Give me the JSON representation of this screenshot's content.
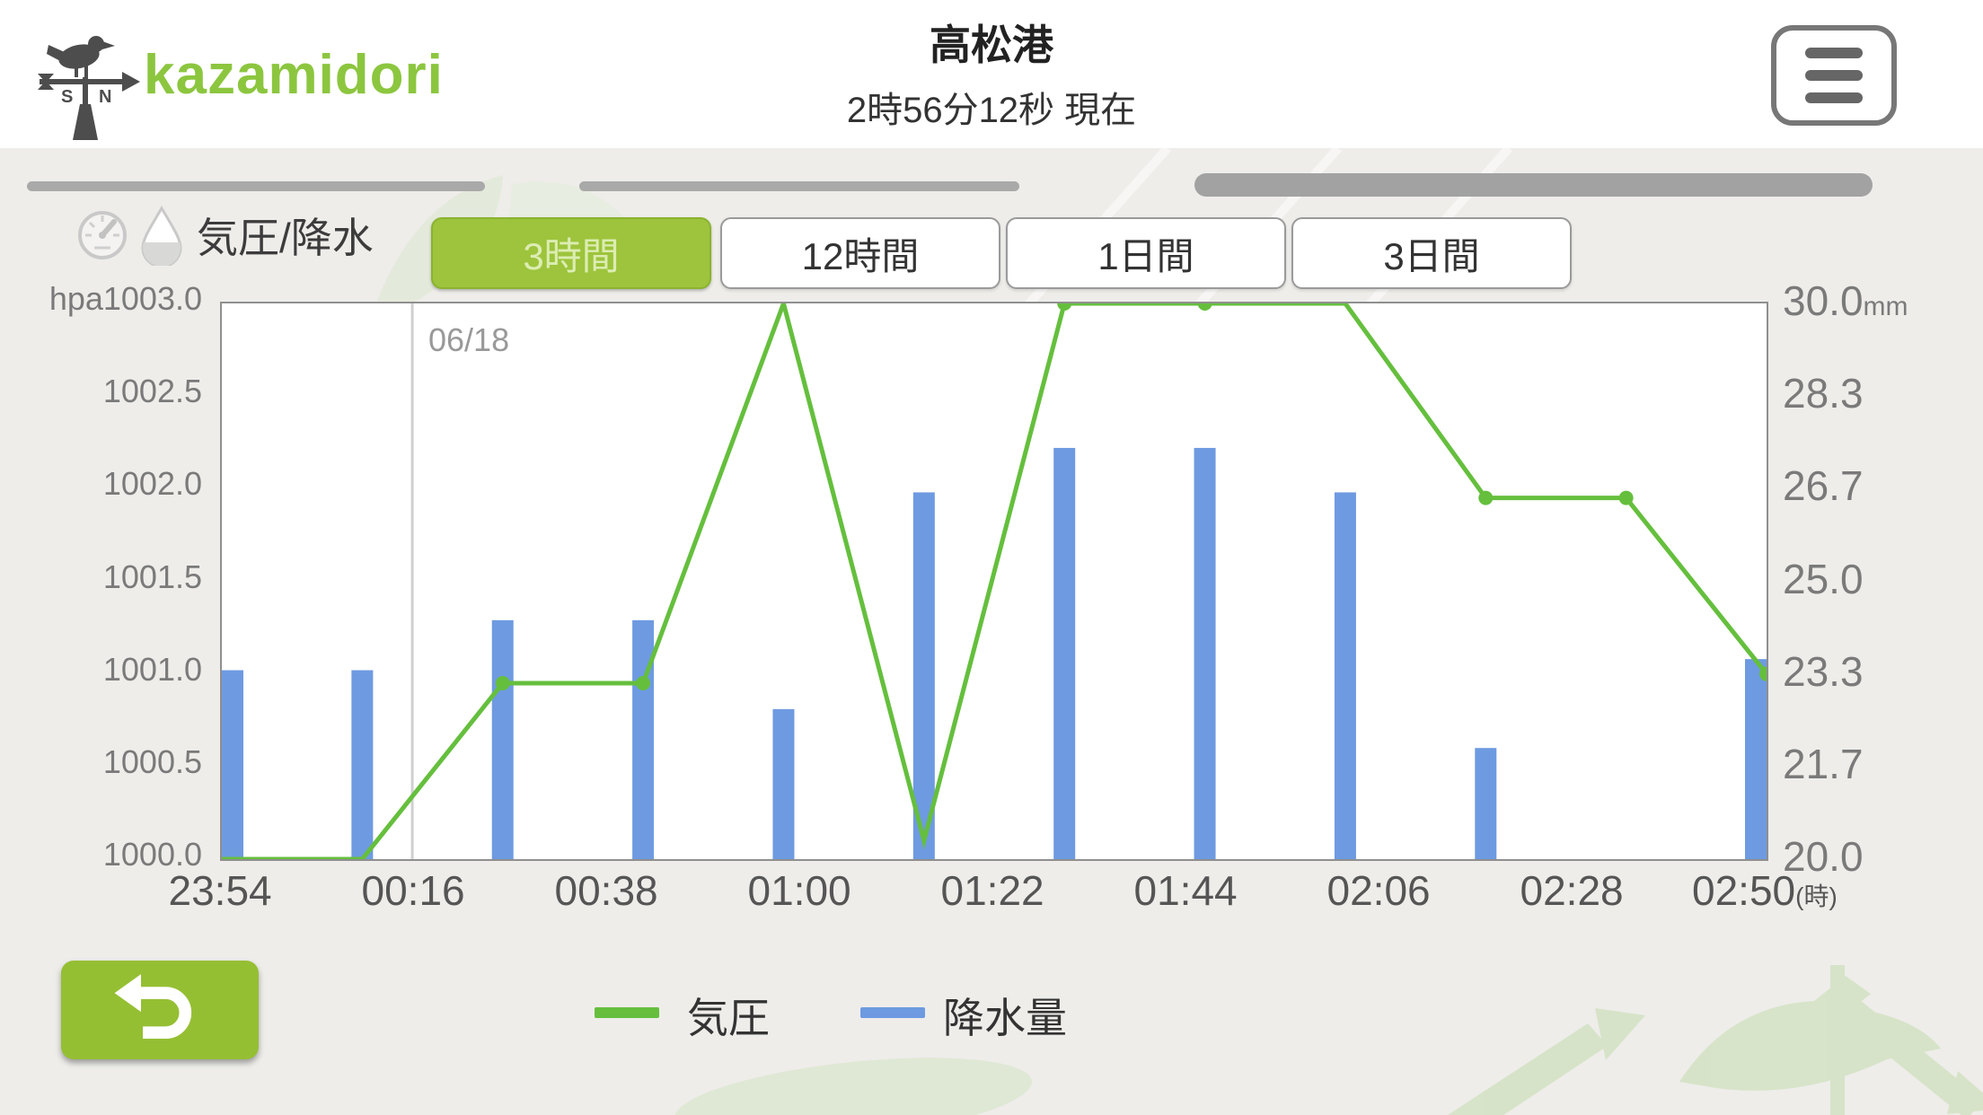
{
  "header": {
    "logo_text": "kazamidori",
    "title": "高松港",
    "subtitle": "2時56分12秒 現在"
  },
  "section": {
    "label": "気圧/降水"
  },
  "tabs": [
    {
      "label": "3時間",
      "active": true
    },
    {
      "label": "12時間",
      "active": false
    },
    {
      "label": "1日間",
      "active": false
    },
    {
      "label": "3日間",
      "active": false
    }
  ],
  "chart_data": {
    "type": "combo (line + bar)",
    "x": [
      "23:54",
      "00:10",
      "00:26",
      "00:42",
      "00:58",
      "01:14",
      "01:30",
      "01:46",
      "02:02",
      "02:18",
      "02:34",
      "02:50"
    ],
    "x_tick_labels": [
      "23:54",
      "00:16",
      "00:38",
      "01:00",
      "01:22",
      "01:44",
      "02:06",
      "02:28",
      "02:50"
    ],
    "x_unit_suffix": "(時)",
    "series": [
      {
        "name": "気圧",
        "kind": "line",
        "axis": "left",
        "color": "#65bf3d",
        "values": [
          1000.0,
          1000.0,
          1000.95,
          1000.95,
          1003.0,
          1000.1,
          1003.0,
          1003.0,
          1003.0,
          1001.95,
          1001.95,
          1001.0
        ]
      },
      {
        "name": "降水量",
        "kind": "bar",
        "axis": "right",
        "color": "#6e9ae1",
        "values": [
          23.4,
          23.4,
          24.3,
          24.3,
          22.7,
          26.6,
          27.4,
          27.4,
          26.6,
          22.0,
          0,
          23.6
        ]
      }
    ],
    "left_axis": {
      "unit_prefix": "hpa",
      "min": 1000.0,
      "max": 1003.0,
      "ticks": [
        "1003.0",
        "1002.5",
        "1002.0",
        "1001.5",
        "1001.0",
        "1000.5",
        "1000.0"
      ]
    },
    "right_axis": {
      "unit": "mm",
      "min": 20.0,
      "max": 30.0,
      "ticks": [
        "30.0",
        "28.3",
        "26.7",
        "25.0",
        "23.3",
        "21.7",
        "20.0"
      ]
    },
    "day_marker": {
      "label": "06/18",
      "x_fraction": 0.1233
    },
    "dot_indices": [
      2,
      3,
      6,
      7,
      9,
      10,
      11
    ],
    "legend_position": "bottom",
    "grid": false
  },
  "legend": [
    {
      "label": "気圧",
      "color": "#65bf3d"
    },
    {
      "label": "降水量",
      "color": "#6e9ae1"
    }
  ],
  "colors": {
    "accent_green": "#8cc63f",
    "tab_active_bg": "#9dc43c",
    "tab_active_text": "#dcedb2",
    "line_green": "#65bf3d",
    "bar_blue": "#6e9ae1",
    "back_button_green": "#95bf33",
    "content_bg": "#eeedea",
    "day_line_gray": "#d0d0d0"
  }
}
